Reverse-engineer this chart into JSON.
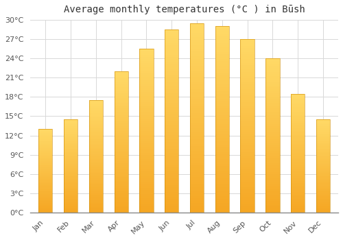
{
  "title": "Average monthly temperatures (°C ) in Būsh",
  "months": [
    "Jan",
    "Feb",
    "Mar",
    "Apr",
    "May",
    "Jun",
    "Jul",
    "Aug",
    "Sep",
    "Oct",
    "Nov",
    "Dec"
  ],
  "temperatures": [
    13.0,
    14.5,
    17.5,
    22.0,
    25.5,
    28.5,
    29.5,
    29.0,
    27.0,
    24.0,
    18.5,
    14.5
  ],
  "ylim": [
    0,
    30
  ],
  "yticks": [
    0,
    3,
    6,
    9,
    12,
    15,
    18,
    21,
    24,
    27,
    30
  ],
  "bar_color_bottom": "#F5A623",
  "bar_color_top": "#FFD966",
  "grid_color": "#d8d8d8",
  "bg_color": "#ffffff",
  "title_fontsize": 10,
  "tick_fontsize": 8,
  "bar_width": 0.55
}
